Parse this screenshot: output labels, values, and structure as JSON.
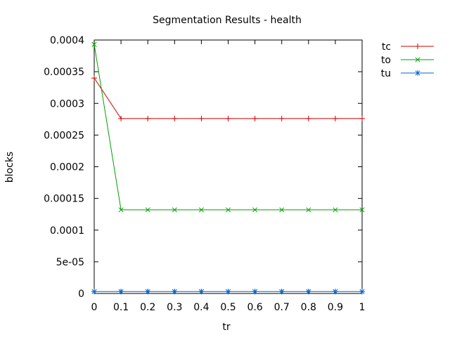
{
  "chart_data": {
    "type": "line",
    "title": "Segmentation Results - health",
    "xlabel": "tr",
    "ylabel": "blocks",
    "x": [
      0,
      0.1,
      0.2,
      0.3,
      0.4,
      0.5,
      0.6,
      0.7,
      0.8,
      0.9,
      1
    ],
    "x_tick_labels": [
      "0",
      "0.1",
      "0.2",
      "0.3",
      "0.4",
      "0.5",
      "0.6",
      "0.7",
      "0.8",
      "0.9",
      "1"
    ],
    "y_ticks": [
      0,
      5e-05,
      0.0001,
      0.00015,
      0.0002,
      0.00025,
      0.0003,
      0.00035,
      0.0004
    ],
    "y_tick_labels": [
      "0",
      "5e-05",
      "0.0001",
      "0.00015",
      "0.0002",
      "0.00025",
      "0.0003",
      "0.00035",
      "0.0004"
    ],
    "xlim": [
      0,
      1
    ],
    "ylim": [
      0,
      0.0004
    ],
    "grid": false,
    "legend_position": "outside-top-right",
    "series": [
      {
        "name": "tc",
        "color": "#cc0000",
        "marker": "plus",
        "values": [
          0.00034,
          0.000276,
          0.000276,
          0.000276,
          0.000276,
          0.000276,
          0.000276,
          0.000276,
          0.000276,
          0.000276,
          0.000276
        ]
      },
      {
        "name": "to",
        "color": "#00a000",
        "marker": "cross",
        "values": [
          0.000393,
          0.000132,
          0.000132,
          0.000132,
          0.000132,
          0.000132,
          0.000132,
          0.000132,
          0.000132,
          0.000132,
          0.000132
        ]
      },
      {
        "name": "tu",
        "color": "#0066cc",
        "marker": "star",
        "values": [
          3e-06,
          3e-06,
          3e-06,
          3e-06,
          3e-06,
          3e-06,
          3e-06,
          3e-06,
          3e-06,
          3e-06,
          3e-06
        ]
      }
    ]
  }
}
